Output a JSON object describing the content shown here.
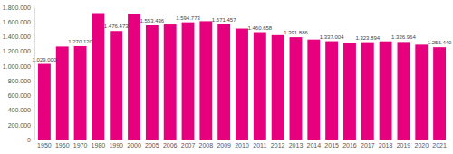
{
  "chart_data": {
    "type": "bar",
    "categories": [
      "1950",
      "1960",
      "1970",
      "1980",
      "1990",
      "2000",
      "2005",
      "2006",
      "2007",
      "2008",
      "2009",
      "2010",
      "2011",
      "2012",
      "2013",
      "2014",
      "2015",
      "2016",
      "2017",
      "2018",
      "2019",
      "2020",
      "2021"
    ],
    "values": [
      1029000,
      1265000,
      1270120,
      1720000,
      1476473,
      1710000,
      1553436,
      1565000,
      1594773,
      1610000,
      1571457,
      1510000,
      1460658,
      1420000,
      1391886,
      1360000,
      1337004,
      1315000,
      1323894,
      1335000,
      1326964,
      1290000,
      1255440
    ],
    "value_labels": [
      "1.029.000",
      null,
      "1.270.120",
      null,
      "1.476.473",
      null,
      "1.553.436",
      null,
      "1.594.773",
      null,
      "1.571.457",
      null,
      "1.460.658",
      null,
      "1.391.886",
      null,
      "1.337.004",
      null,
      "1.323.894",
      null,
      "1.326.964",
      null,
      "1.255.440"
    ],
    "data_labels": true,
    "color": "#e6007e",
    "ylim": [
      0,
      1800000
    ],
    "yticks": [
      0,
      {
        "value": 200000,
        "label": "200.000"
      },
      {
        "value": 400000,
        "label": "400.000"
      },
      {
        "value": 600000,
        "label": "600.000"
      },
      {
        "value": 800000,
        "label": "800.000"
      },
      {
        "value": 1000000,
        "label": "1.000.000"
      },
      {
        "value": 1200000,
        "label": "1.200.000"
      },
      {
        "value": 1400000,
        "label": "1.400.000"
      },
      {
        "value": 1600000,
        "label": "1.600.000"
      },
      {
        "value": 1800000,
        "label": "1.800.000"
      }
    ],
    "grid": false
  }
}
